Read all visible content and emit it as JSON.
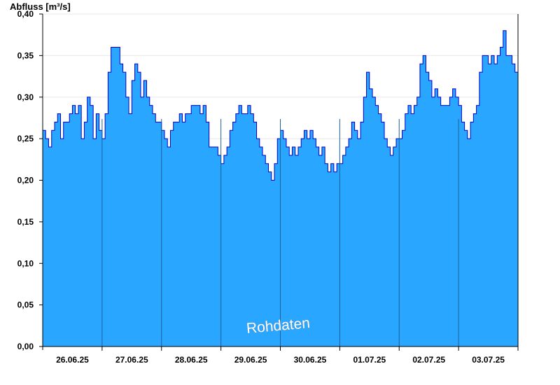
{
  "chart_data": {
    "type": "area",
    "ylabel": "Abfluss [m³/s]",
    "ylim": [
      0,
      0.4
    ],
    "yticks": [
      "0,00",
      "0,05",
      "0,10",
      "0,15",
      "0,20",
      "0,25",
      "0,30",
      "0,35",
      "0,40"
    ],
    "ytick_values": [
      0,
      0.05,
      0.1,
      0.15,
      0.2,
      0.25,
      0.3,
      0.35,
      0.4
    ],
    "xlim": [
      0,
      8
    ],
    "xticks": [
      "26.06.25",
      "27.06.25",
      "28.06.25",
      "29.06.25",
      "30.06.25",
      "01.07.25",
      "02.07.25",
      "03.07.25"
    ],
    "day_boundaries": [
      1,
      2,
      3,
      4,
      5,
      6,
      7
    ],
    "grid": "horizontal",
    "fill_color": "#29a6ff",
    "line_color": "#0000cc",
    "annotation": "Rohdaten",
    "series": [
      {
        "x": [
          0,
          0.05,
          0.1,
          0.15,
          0.2,
          0.25,
          0.3,
          0.35,
          0.4,
          0.45,
          0.5,
          0.55,
          0.6,
          0.65,
          0.7,
          0.75,
          0.8,
          0.85,
          0.9,
          0.95,
          1,
          1.05,
          1.1,
          1.15,
          1.2,
          1.25,
          1.3,
          1.35,
          1.4,
          1.45,
          1.5,
          1.55,
          1.6,
          1.65,
          1.7,
          1.75,
          1.8,
          1.85,
          1.9,
          1.95,
          2,
          2.05,
          2.1,
          2.15,
          2.2,
          2.25,
          2.3,
          2.35,
          2.4,
          2.45,
          2.5,
          2.55,
          2.6,
          2.65,
          2.7,
          2.75,
          2.8,
          2.85,
          2.9,
          2.95,
          3,
          3.05,
          3.1,
          3.15,
          3.2,
          3.25,
          3.3,
          3.35,
          3.4,
          3.45,
          3.5,
          3.55,
          3.6,
          3.65,
          3.7,
          3.75,
          3.8,
          3.85,
          3.9,
          3.95,
          4,
          4.05,
          4.1,
          4.15,
          4.2,
          4.25,
          4.3,
          4.35,
          4.4,
          4.45,
          4.5,
          4.55,
          4.6,
          4.65,
          4.7,
          4.75,
          4.8,
          4.85,
          4.9,
          4.95,
          5,
          5.05,
          5.1,
          5.15,
          5.2,
          5.25,
          5.3,
          5.35,
          5.4,
          5.45,
          5.5,
          5.55,
          5.6,
          5.65,
          5.7,
          5.75,
          5.8,
          5.85,
          5.9,
          5.95,
          6,
          6.05,
          6.1,
          6.15,
          6.2,
          6.25,
          6.3,
          6.35,
          6.4,
          6.45,
          6.5,
          6.55,
          6.6,
          6.65,
          6.7,
          6.75,
          6.8,
          6.85,
          6.9,
          6.95,
          7,
          7.05,
          7.1,
          7.15,
          7.2,
          7.25,
          7.3,
          7.35,
          7.4,
          7.45,
          7.5,
          7.55,
          7.6,
          7.65,
          7.7,
          7.75,
          7.8,
          7.85,
          7.9,
          7.95,
          8
        ],
        "y": [
          0.26,
          0.25,
          0.24,
          0.26,
          0.27,
          0.28,
          0.25,
          0.27,
          0.27,
          0.28,
          0.29,
          0.28,
          0.29,
          0.25,
          0.27,
          0.3,
          0.29,
          0.25,
          0.28,
          0.26,
          0.25,
          0.28,
          0.33,
          0.36,
          0.36,
          0.36,
          0.34,
          0.33,
          0.3,
          0.28,
          0.32,
          0.34,
          0.33,
          0.3,
          0.32,
          0.3,
          0.29,
          0.28,
          0.27,
          0.27,
          0.26,
          0.25,
          0.24,
          0.26,
          0.27,
          0.27,
          0.28,
          0.27,
          0.28,
          0.28,
          0.29,
          0.29,
          0.29,
          0.28,
          0.29,
          0.27,
          0.24,
          0.24,
          0.24,
          0.23,
          0.22,
          0.23,
          0.24,
          0.26,
          0.27,
          0.28,
          0.29,
          0.28,
          0.28,
          0.29,
          0.28,
          0.27,
          0.25,
          0.24,
          0.23,
          0.22,
          0.21,
          0.2,
          0.22,
          0.25,
          0.26,
          0.25,
          0.24,
          0.23,
          0.24,
          0.23,
          0.24,
          0.25,
          0.26,
          0.25,
          0.26,
          0.25,
          0.24,
          0.23,
          0.24,
          0.22,
          0.21,
          0.22,
          0.21,
          0.22,
          0.22,
          0.23,
          0.24,
          0.25,
          0.27,
          0.26,
          0.25,
          0.27,
          0.3,
          0.33,
          0.31,
          0.3,
          0.29,
          0.28,
          0.27,
          0.25,
          0.24,
          0.23,
          0.24,
          0.25,
          0.25,
          0.26,
          0.28,
          0.29,
          0.28,
          0.29,
          0.3,
          0.34,
          0.35,
          0.33,
          0.32,
          0.3,
          0.31,
          0.3,
          0.29,
          0.29,
          0.29,
          0.3,
          0.31,
          0.3,
          0.29,
          0.27,
          0.26,
          0.25,
          0.27,
          0.28,
          0.29,
          0.33,
          0.35,
          0.35,
          0.34,
          0.35,
          0.34,
          0.35,
          0.36,
          0.38,
          0.35,
          0.35,
          0.34,
          0.33,
          0.32
        ]
      }
    ]
  }
}
